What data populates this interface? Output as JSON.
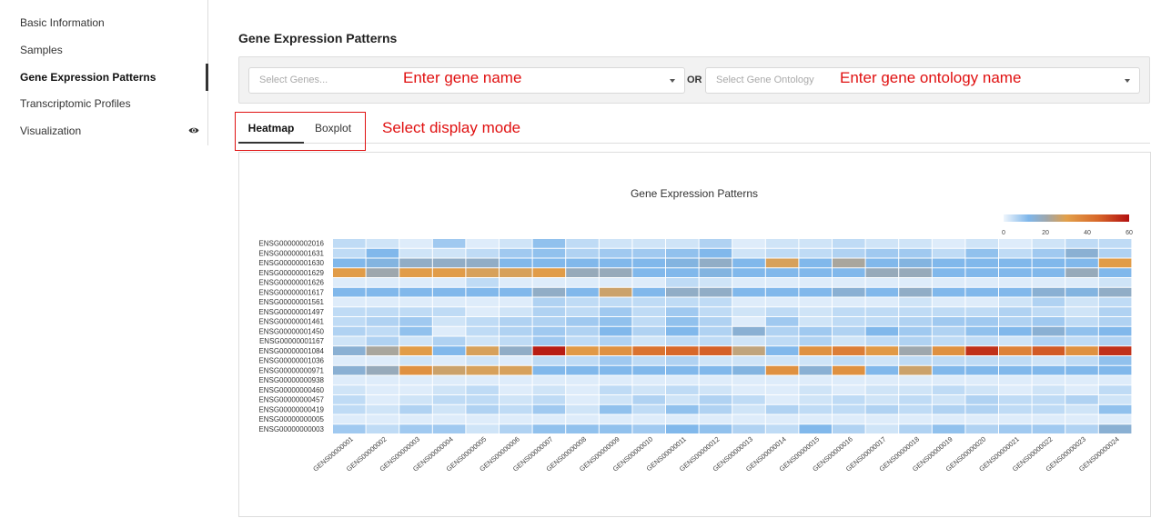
{
  "sidebar": {
    "items": [
      {
        "label": "Basic Information"
      },
      {
        "label": "Samples"
      },
      {
        "label": "Gene Expression Patterns",
        "active": true
      },
      {
        "label": "Transcriptomic Profiles"
      },
      {
        "label": "Visualization",
        "icon": "eye-icon"
      }
    ]
  },
  "main": {
    "title": "Gene Expression Patterns",
    "gene_select": {
      "placeholder": "Select Genes...",
      "annotation": "Enter gene name"
    },
    "or_label": "OR",
    "go_select": {
      "placeholder": "Select Gene Ontology",
      "annotation": "Enter gene ontology name"
    },
    "tabs": [
      {
        "label": "Heatmap",
        "active": true
      },
      {
        "label": "Boxplot"
      }
    ],
    "tabs_annotation": "Select display mode"
  },
  "colors": {
    "accent": "#e01010",
    "low": "#7eb6ea",
    "mid": "#e2a04a",
    "high": "#b21010"
  },
  "chart_data": {
    "type": "heatmap",
    "title": "Gene Expression Patterns",
    "legend": {
      "ticks": [
        0,
        20,
        40,
        60
      ],
      "range": [
        0,
        60
      ],
      "placement": "top-right"
    },
    "rows": [
      "ENSG00000002016",
      "ENSG00000001631",
      "ENSG00000001630",
      "ENSG00000001629",
      "ENSG00000001626",
      "ENSG00000001617",
      "ENSG00000001561",
      "ENSG00000001497",
      "ENSG00000001461",
      "ENSG00000001450",
      "ENSG00000001167",
      "ENSG00000001084",
      "ENSG00000001036",
      "ENSG00000000971",
      "ENSG00000000938",
      "ENSG00000000460",
      "ENSG00000000457",
      "ENSG00000000419",
      "ENSG00000000005",
      "ENSG00000000003"
    ],
    "columns": [
      "GENS00000001",
      "GENS00000002",
      "GENS00000003",
      "GENS00000004",
      "GENS00000005",
      "GENS00000006",
      "GENS00000007",
      "GENS00000008",
      "GENS00000009",
      "GENS00000010",
      "GENS00000011",
      "GENS00000012",
      "GENS00000013",
      "GENS00000014",
      "GENS00000015",
      "GENS00000016",
      "GENS00000017",
      "GENS00000018",
      "GENS00000019",
      "GENS00000020",
      "GENS00000021",
      "GENS00000022",
      "GENS00000023",
      "GENS00000024"
    ],
    "values": [
      [
        3,
        2,
        1,
        5,
        1,
        2,
        6,
        3,
        2,
        2,
        2,
        4,
        1,
        2,
        2,
        3,
        2,
        2,
        1,
        2,
        1,
        2,
        3,
        3
      ],
      [
        3,
        7,
        2,
        2,
        3,
        5,
        6,
        4,
        5,
        5,
        6,
        7,
        2,
        3,
        3,
        4,
        5,
        5,
        3,
        6,
        3,
        5,
        9,
        4
      ],
      [
        7,
        8,
        10,
        10,
        10,
        7,
        7,
        7,
        7,
        7,
        8,
        10,
        7,
        17,
        7,
        13,
        7,
        8,
        7,
        7,
        7,
        7,
        7,
        19
      ],
      [
        19,
        12,
        19,
        19,
        17,
        17,
        19,
        11,
        11,
        7,
        7,
        8,
        7,
        7,
        7,
        7,
        11,
        11,
        7,
        7,
        7,
        7,
        11,
        7
      ],
      [
        1,
        1,
        1,
        1,
        3,
        1,
        1,
        1,
        1,
        1,
        3,
        2,
        1,
        1,
        1,
        1,
        1,
        1,
        1,
        1,
        1,
        1,
        1,
        2
      ],
      [
        7,
        7,
        7,
        7,
        7,
        7,
        10,
        7,
        16,
        7,
        10,
        10,
        7,
        7,
        7,
        9,
        7,
        10,
        7,
        7,
        7,
        9,
        8,
        10
      ],
      [
        1,
        1,
        1,
        1,
        1,
        1,
        4,
        3,
        3,
        3,
        3,
        3,
        1,
        1,
        1,
        1,
        1,
        2,
        1,
        1,
        2,
        4,
        2,
        3
      ],
      [
        3,
        3,
        3,
        3,
        1,
        2,
        4,
        3,
        5,
        3,
        5,
        3,
        2,
        3,
        2,
        3,
        3,
        3,
        3,
        3,
        4,
        3,
        2,
        4
      ],
      [
        3,
        4,
        5,
        2,
        3,
        4,
        4,
        5,
        6,
        3,
        6,
        4,
        1,
        5,
        2,
        3,
        3,
        4,
        5,
        5,
        4,
        5,
        3,
        4
      ],
      [
        4,
        3,
        6,
        1,
        3,
        4,
        5,
        4,
        7,
        4,
        7,
        4,
        9,
        4,
        5,
        4,
        7,
        5,
        4,
        6,
        7,
        9,
        6,
        7
      ],
      [
        2,
        4,
        2,
        4,
        2,
        3,
        5,
        3,
        4,
        2,
        3,
        3,
        2,
        3,
        4,
        2,
        3,
        4,
        3,
        3,
        2,
        4,
        3,
        4
      ],
      [
        9,
        13,
        19,
        7,
        17,
        10,
        56,
        20,
        22,
        30,
        33,
        35,
        15,
        7,
        22,
        27,
        20,
        12,
        22,
        50,
        26,
        37,
        22,
        50
      ],
      [
        1,
        1,
        2,
        1,
        2,
        1,
        3,
        3,
        5,
        3,
        4,
        2,
        2,
        2,
        2,
        3,
        2,
        3,
        3,
        3,
        3,
        2,
        3,
        6
      ],
      [
        9,
        11,
        22,
        16,
        17,
        17,
        7,
        7,
        7,
        7,
        7,
        7,
        8,
        22,
        9,
        22,
        7,
        16,
        7,
        7,
        7,
        7,
        7,
        7
      ],
      [
        1,
        1,
        1,
        1,
        1,
        1,
        1,
        1,
        1,
        1,
        1,
        1,
        1,
        1,
        1,
        1,
        1,
        1,
        1,
        1,
        1,
        1,
        1,
        1
      ],
      [
        2,
        1,
        1,
        2,
        3,
        1,
        2,
        1,
        3,
        2,
        3,
        2,
        1,
        1,
        2,
        1,
        2,
        2,
        3,
        2,
        1,
        2,
        1,
        3
      ],
      [
        3,
        1,
        2,
        3,
        3,
        2,
        3,
        1,
        2,
        4,
        2,
        4,
        3,
        1,
        2,
        3,
        2,
        3,
        2,
        4,
        3,
        3,
        4,
        2
      ],
      [
        3,
        2,
        4,
        2,
        4,
        3,
        5,
        2,
        6,
        3,
        6,
        4,
        2,
        4,
        3,
        3,
        4,
        3,
        4,
        4,
        3,
        3,
        2,
        6
      ],
      [
        1,
        1,
        1,
        1,
        1,
        1,
        1,
        1,
        1,
        1,
        1,
        1,
        1,
        1,
        1,
        1,
        1,
        1,
        1,
        1,
        1,
        1,
        1,
        1
      ],
      [
        5,
        3,
        5,
        5,
        2,
        4,
        6,
        6,
        6,
        5,
        7,
        6,
        4,
        3,
        7,
        4,
        2,
        4,
        6,
        4,
        5,
        5,
        4,
        9
      ]
    ]
  }
}
